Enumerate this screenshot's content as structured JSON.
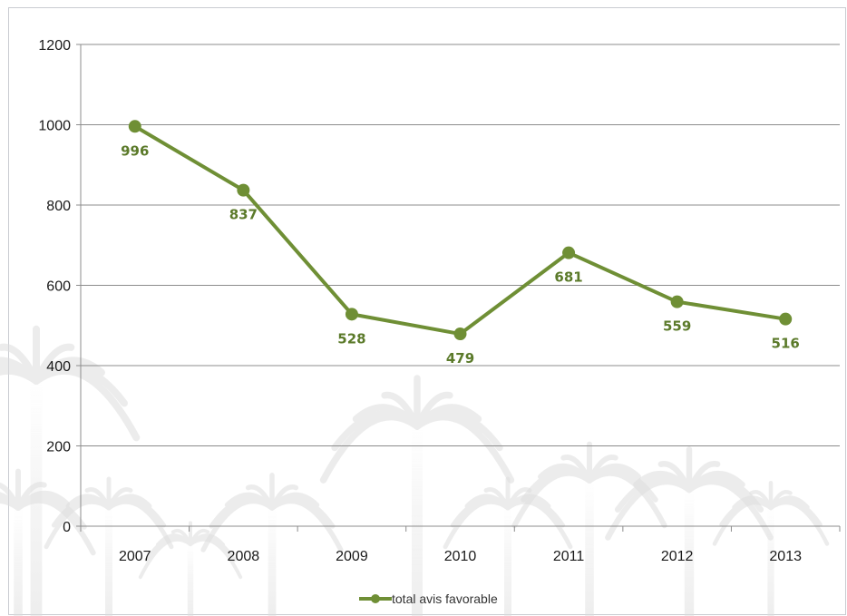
{
  "chart_data": {
    "type": "line",
    "title": "",
    "xlabel": "",
    "ylabel": "",
    "categories": [
      "2007",
      "2008",
      "2009",
      "2010",
      "2011",
      "2012",
      "2013"
    ],
    "series": [
      {
        "name": "total avis favorable",
        "values": [
          996,
          837,
          528,
          479,
          681,
          559,
          516
        ],
        "color": "#6f8f35"
      }
    ],
    "ylim": [
      0,
      1200
    ],
    "yticks": [
      0,
      200,
      400,
      600,
      800,
      1000,
      1200
    ],
    "ytick_labels": [
      "0",
      "200",
      "400",
      "600",
      "800",
      "1000",
      "1200"
    ],
    "data_labels": [
      "996",
      "837",
      "528",
      "479",
      "681",
      "559",
      "516"
    ],
    "grid": true,
    "legend": "bottom",
    "background_decoration": "faded-palm-trees"
  }
}
